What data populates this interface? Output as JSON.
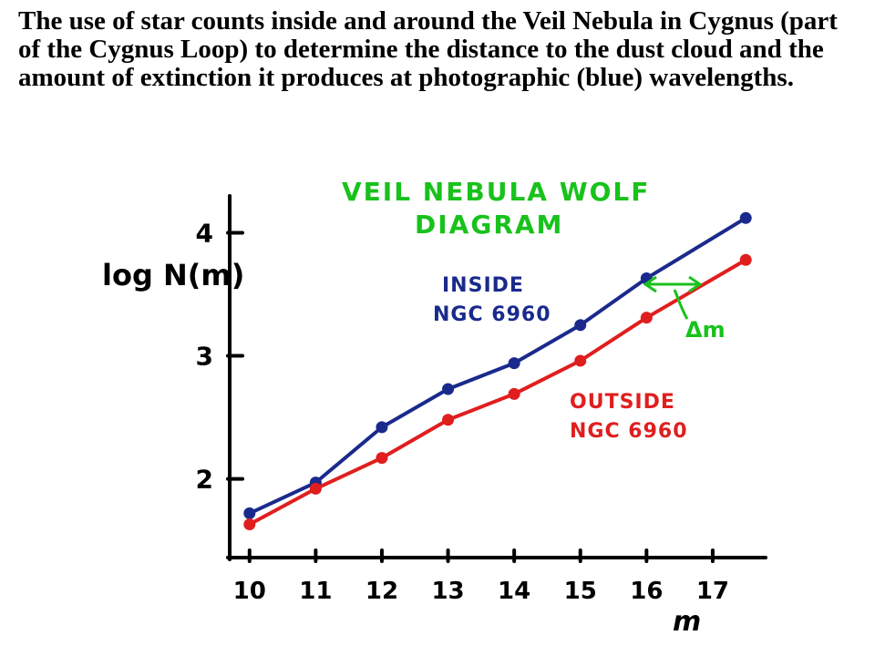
{
  "caption": "The use of star counts inside and around the Veil Nebula in Cygnus (part of the Cygnus Loop) to determine the distance to the dust cloud and the amount of extinction it produces at photographic (blue) wavelengths.",
  "colors": {
    "inside": "#1a2a8c",
    "outside": "#e01e1e",
    "title": "#18c21b",
    "annotation": "#18c21b",
    "axis": "#000000"
  },
  "chart_data": {
    "type": "line",
    "title": [
      "VEIL NEBULA WOLF",
      "DIAGRAM"
    ],
    "xlabel": "m",
    "ylabel": "log N(m)",
    "x_ticks": [
      "10",
      "11",
      "12",
      "13",
      "14",
      "15",
      "16",
      "17"
    ],
    "y_ticks": [
      "2",
      "3",
      "4"
    ],
    "xlim": [
      9.7,
      17.8
    ],
    "ylim": [
      1.36,
      4.3
    ],
    "series": [
      {
        "name": [
          "INSIDE",
          "NGC 6960"
        ],
        "color": "#1a2a8c",
        "x": [
          10.0,
          11.0,
          12.0,
          13.0,
          14.0,
          15.0,
          16.0,
          17.5
        ],
        "y": [
          1.72,
          1.97,
          2.42,
          2.73,
          2.94,
          3.25,
          3.63,
          4.12
        ]
      },
      {
        "name": [
          "OUTSIDE",
          "NGC 6960"
        ],
        "color": "#e01e1e",
        "x": [
          10.0,
          11.0,
          12.0,
          13.0,
          14.0,
          15.0,
          16.0,
          17.5
        ],
        "y": [
          1.63,
          1.92,
          2.17,
          2.48,
          2.69,
          2.96,
          3.31,
          3.78
        ]
      }
    ],
    "annotation": "Δm",
    "grid": false
  }
}
